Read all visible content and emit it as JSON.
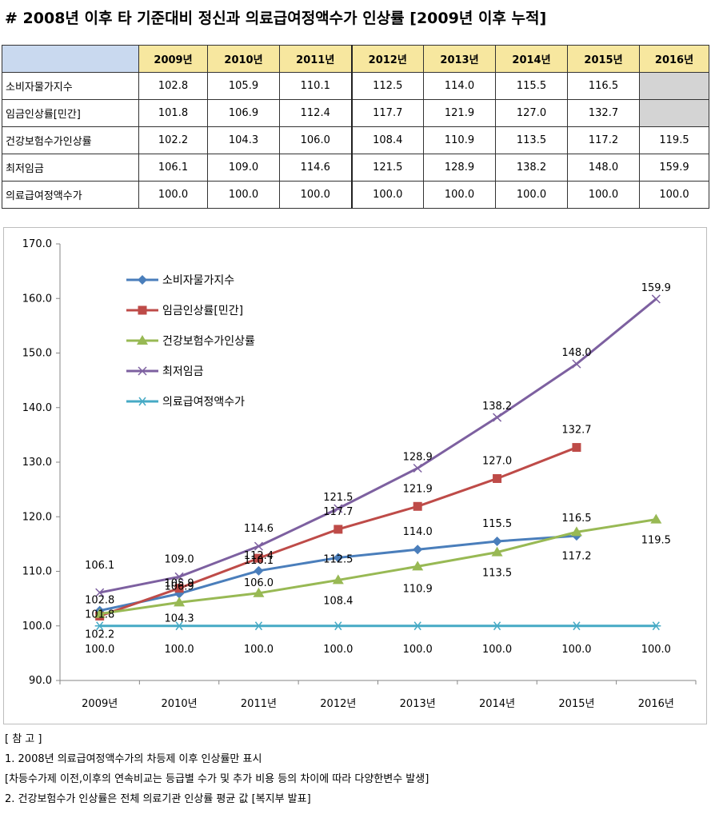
{
  "title": "# 2008년 이후 타 기준대비 정신과 의료급여정액수가 인상률 [2009년 이후 누적]",
  "table": {
    "corner": "",
    "years": [
      "2009년",
      "2010년",
      "2011년",
      "2012년",
      "2013년",
      "2014년",
      "2015년",
      "2016년"
    ],
    "rows": [
      {
        "label": "소비자물가지수",
        "values": [
          "102.8",
          "105.9",
          "110.1",
          "112.5",
          "114.0",
          "115.5",
          "116.5",
          ""
        ]
      },
      {
        "label": "임금인상률[민간]",
        "values": [
          "101.8",
          "106.9",
          "112.4",
          "117.7",
          "121.9",
          "127.0",
          "132.7",
          ""
        ]
      },
      {
        "label": "건강보험수가인상률",
        "values": [
          "102.2",
          "104.3",
          "106.0",
          "108.4",
          "110.9",
          "113.5",
          "117.2",
          "119.5"
        ]
      },
      {
        "label": "최저임금",
        "values": [
          "106.1",
          "109.0",
          "114.6",
          "121.5",
          "128.9",
          "138.2",
          "148.0",
          "159.9"
        ]
      },
      {
        "label": "의료급여정액수가",
        "values": [
          "100.0",
          "100.0",
          "100.0",
          "100.0",
          "100.0",
          "100.0",
          "100.0",
          "100.0"
        ]
      }
    ]
  },
  "chart_data": {
    "type": "line",
    "categories": [
      "2009년",
      "2010년",
      "2011년",
      "2012년",
      "2013년",
      "2014년",
      "2015년",
      "2016년"
    ],
    "ylim": [
      90,
      170
    ],
    "yticks": [
      "90.0",
      "100.0",
      "110.0",
      "120.0",
      "130.0",
      "140.0",
      "150.0",
      "160.0",
      "170.0"
    ],
    "legend_position": "top-left",
    "series": [
      {
        "name": "소비자물가지수",
        "color": "#4a7ebb",
        "marker": "diamond",
        "values": [
          102.8,
          105.9,
          110.1,
          112.5,
          114.0,
          115.5,
          116.5,
          null
        ],
        "labels": [
          "102.8",
          "105.9",
          "110.1",
          "112.5",
          "114.0",
          "115.5",
          "116.5",
          ""
        ]
      },
      {
        "name": "임금인상률[민간]",
        "color": "#be4b48",
        "marker": "square",
        "values": [
          101.8,
          106.9,
          112.4,
          117.7,
          121.9,
          127.0,
          132.7,
          null
        ],
        "labels": [
          "101.8",
          "106.9",
          "112.4",
          "117.7",
          "121.9",
          "127.0",
          "132.7",
          ""
        ]
      },
      {
        "name": "건강보험수가인상률",
        "color": "#98b954",
        "marker": "triangle",
        "values": [
          102.2,
          104.3,
          106.0,
          108.4,
          110.9,
          113.5,
          117.2,
          119.5
        ],
        "labels": [
          "102.2",
          "104.3",
          "106.0",
          "108.4",
          "110.9",
          "113.5",
          "117.2",
          "119.5"
        ]
      },
      {
        "name": "최저임금",
        "color": "#7d60a0",
        "marker": "x",
        "values": [
          106.1,
          109.0,
          114.6,
          121.5,
          128.9,
          138.2,
          148.0,
          159.9
        ],
        "labels": [
          "106.1",
          "109.0",
          "114.6",
          "121.5",
          "128.9",
          "138.2",
          "148.0",
          "159.9"
        ]
      },
      {
        "name": "의료급여정액수가",
        "color": "#46aac5",
        "marker": "star",
        "values": [
          100.0,
          100.0,
          100.0,
          100.0,
          100.0,
          100.0,
          100.0,
          100.0
        ],
        "labels": [
          "100.0",
          "100.0",
          "100.0",
          "100.0",
          "100.0",
          "100.0",
          "100.0",
          "100.0"
        ]
      }
    ]
  },
  "notes": {
    "heading": "[ 참 고 ]",
    "line1": "1. 2008년 의료급여정액수가의 차등제 이후 인상률만 표시",
    "line2": "[차등수가제 이전,이후의 연속비교는 등급별 수가 및 추가 비용 등의 차이에 따라 다양한변수 발생]",
    "line3": "2. 건강보험수가 인상률은 전체 의료기관 인상률 평균 값 [복지부 발표]"
  }
}
